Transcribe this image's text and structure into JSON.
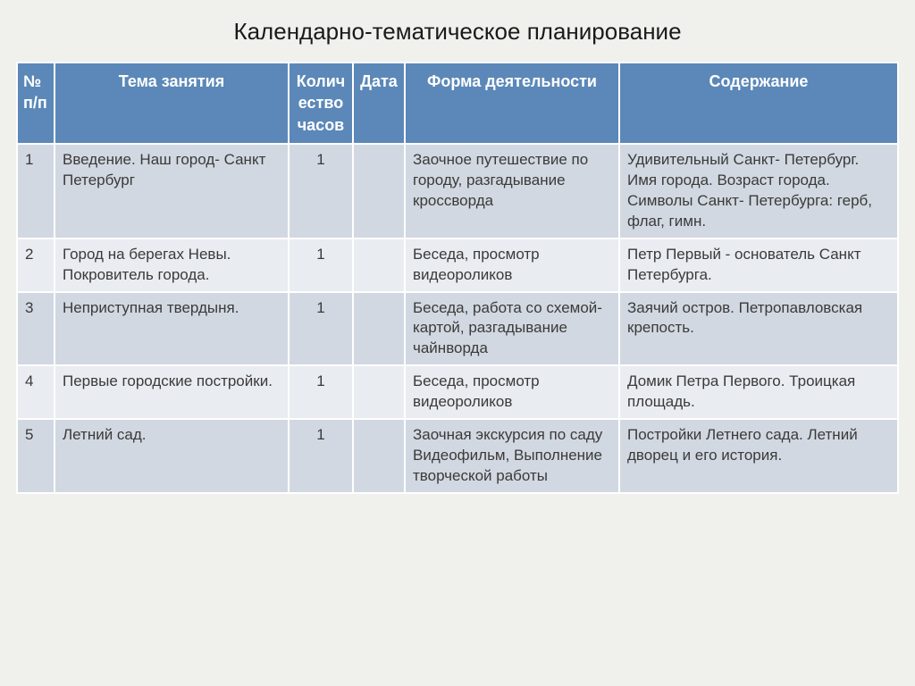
{
  "title": "Календарно-тематическое планирование",
  "table": {
    "columns": [
      "№ п/п",
      "Тема занятия",
      "Колич ество часов",
      "Дата",
      "Форма деятельности",
      "Содержание"
    ],
    "rows": [
      {
        "num": "1",
        "topic": "Введение. Наш город- Санкт Петербург",
        "hours": "1",
        "date": "",
        "form": "Заочное путешествие по городу, разгадывание кроссворда",
        "content": "Удивительный Санкт- Петербург. Имя города. Возраст города. Символы Санкт- Петербурга: герб, флаг, гимн."
      },
      {
        "num": "2",
        "topic": "Город на берегах Невы. Покровитель города.",
        "hours": "1",
        "date": "",
        "form": "Беседа, просмотр видеороликов",
        "content": "Петр Первый - основатель Санкт Петербурга."
      },
      {
        "num": "3",
        "topic": "Неприступная твердыня.",
        "hours": "1",
        "date": "",
        "form": "Беседа, работа со схемой-картой, разгадывание чайнворда",
        "content": "Заячий остров. Петропавловская крепость."
      },
      {
        "num": "4",
        "topic": "Первые городские постройки.",
        "hours": "1",
        "date": "",
        "form": "Беседа, просмотр видеороликов",
        "content": "Домик Петра Первого. Троицкая площадь."
      },
      {
        "num": "5",
        "topic": "Летний сад.",
        "hours": "1",
        "date": "",
        "form": "Заочная экскурсия по саду Видеофильм, Выполнение творческой работы",
        "content": "Постройки Летнего сада. Летний дворец и его история."
      }
    ]
  },
  "styling": {
    "header_bg": "#5b88b8",
    "header_text": "#ffffff",
    "row_odd_bg": "#d2d8e1",
    "row_even_bg": "#e9ecf1",
    "border_color": "#ffffff",
    "page_bg": "#f0f0ed",
    "font_size_body": 17,
    "font_size_header": 18,
    "font_size_title": 26
  }
}
